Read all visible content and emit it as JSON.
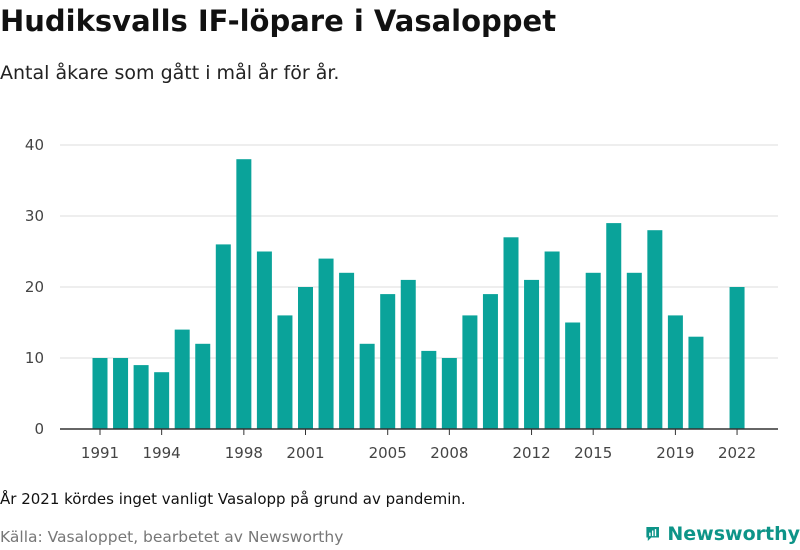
{
  "title": "Hudiksvalls IF-löpare i Vasaloppet",
  "subtitle": "Antal åkare som gått i mål år för år.",
  "note": "År 2021 kördes inget vanligt Vasalopp på grund av pandemin.",
  "source": "Källa: Vasaloppet, bearbetet av Newsworthy",
  "brand": {
    "name": "Newsworthy",
    "icon": "newsworthy-logo-icon"
  },
  "colors": {
    "bar": "#0aa39a",
    "grid": "#dddddd",
    "axis": "#333333",
    "brand": "#0d9488"
  },
  "chart_data": {
    "type": "bar",
    "title": "Hudiksvalls IF-löpare i Vasaloppet",
    "subtitle": "Antal åkare som gått i mål år för år.",
    "xlabel": "",
    "ylabel": "",
    "ylim": [
      0,
      40
    ],
    "yticks": [
      0,
      10,
      20,
      30,
      40
    ],
    "xtick_labels": [
      "1991",
      "1994",
      "1998",
      "2001",
      "2005",
      "2008",
      "2012",
      "2015",
      "2019",
      "2022"
    ],
    "grid": true,
    "x": [
      1991,
      1992,
      1993,
      1994,
      1995,
      1996,
      1997,
      1998,
      1999,
      2000,
      2001,
      2002,
      2003,
      2004,
      2005,
      2006,
      2007,
      2008,
      2009,
      2010,
      2011,
      2012,
      2013,
      2014,
      2015,
      2016,
      2017,
      2018,
      2019,
      2020,
      2021,
      2022
    ],
    "values": [
      10,
      10,
      9,
      8,
      14,
      12,
      26,
      38,
      25,
      16,
      20,
      24,
      22,
      12,
      19,
      21,
      11,
      10,
      16,
      19,
      27,
      21,
      25,
      15,
      22,
      29,
      22,
      28,
      16,
      13,
      null,
      20
    ]
  }
}
